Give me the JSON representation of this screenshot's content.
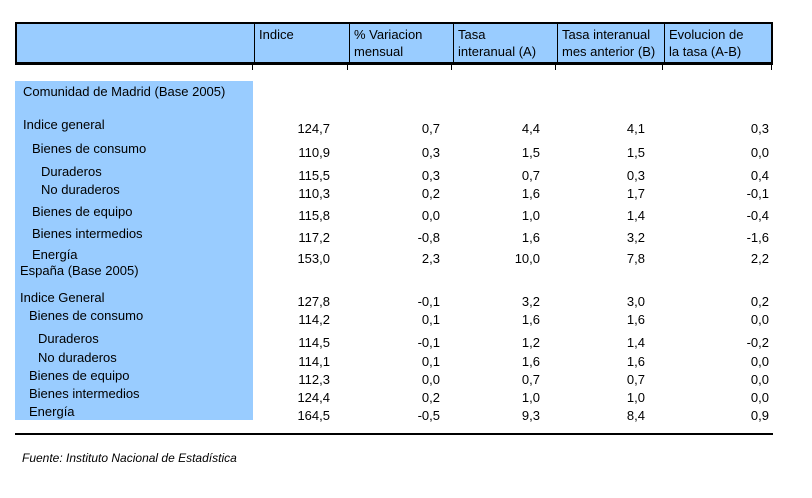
{
  "page": {
    "footer_note": "Fuente: Instituto Nacional de Estadística"
  },
  "colors": {
    "header_bg": "#99CCFF",
    "label_col_bg": "#99CCFF",
    "border": "#000000"
  },
  "table": {
    "columns": [
      {
        "line1": "",
        "line2": ""
      },
      {
        "line1": "Indice",
        "line2": ""
      },
      {
        "line1": "% Variacion",
        "line2": "mensual"
      },
      {
        "line1": "Tasa",
        "line2": "interanual (A)"
      },
      {
        "line1": "Tasa interanual",
        "line2": "mes anterior (B)"
      },
      {
        "line1": "Evolucion de",
        "line2": "la tasa (A-B)"
      }
    ],
    "column_keys": [
      "indice",
      "variacion-mensual",
      "tasa-interanual-a",
      "tasa-interanual-b",
      "evolucion-tasa"
    ],
    "sections": [
      {
        "title": "Comunidad de Madrid (Base 2005)",
        "rows": [
          {
            "label": "Indice general",
            "indent": 0,
            "values": [
              "124,7",
              "0,7",
              "4,4",
              "4,1",
              "0,3"
            ]
          },
          {
            "label": "Bienes de consumo",
            "indent": 1,
            "values": [
              "110,9",
              "0,3",
              "1,5",
              "1,5",
              "0,0"
            ]
          },
          {
            "label": "Duraderos",
            "indent": 2,
            "values": [
              "115,5",
              "0,3",
              "0,7",
              "0,3",
              "0,4"
            ]
          },
          {
            "label": "No duraderos",
            "indent": 2,
            "values": [
              "110,3",
              "0,2",
              "1,6",
              "1,7",
              "-0,1"
            ]
          },
          {
            "label": "Bienes de equipo",
            "indent": 1,
            "values": [
              "115,8",
              "0,0",
              "1,0",
              "1,4",
              "-0,4"
            ]
          },
          {
            "label": "Bienes intermedios",
            "indent": 1,
            "values": [
              "117,2",
              "-0,8",
              "1,6",
              "3,2",
              "-1,6"
            ]
          },
          {
            "label": "Energía",
            "indent": 1,
            "values": [
              "153,0",
              "2,3",
              "10,0",
              "7,8",
              "2,2"
            ]
          }
        ]
      },
      {
        "title": "España (Base 2005)",
        "rows": [
          {
            "label": "Indice General",
            "indent": 0,
            "values": [
              "127,8",
              "-0,1",
              "3,2",
              "3,0",
              "0,2"
            ]
          },
          {
            "label": "Bienes de consumo",
            "indent": 1,
            "values": [
              "114,2",
              "0,1",
              "1,6",
              "1,6",
              "0,0"
            ]
          },
          {
            "label": "Duraderos",
            "indent": 2,
            "values": [
              "114,5",
              "-0,1",
              "1,2",
              "1,4",
              "-0,2"
            ]
          },
          {
            "label": "No duraderos",
            "indent": 2,
            "values": [
              "114,1",
              "0,1",
              "1,6",
              "1,6",
              "0,0"
            ]
          },
          {
            "label": "Bienes de equipo",
            "indent": 1,
            "values": [
              "112,3",
              "0,0",
              "0,7",
              "0,7",
              "0,0"
            ]
          },
          {
            "label": "Bienes intermedios",
            "indent": 1,
            "values": [
              "124,4",
              "0,2",
              "1,0",
              "1,0",
              "0,0"
            ]
          },
          {
            "label": "Energía",
            "indent": 1,
            "values": [
              "164,5",
              "-0,5",
              "9,3",
              "8,4",
              "0,9"
            ]
          }
        ]
      }
    ]
  }
}
